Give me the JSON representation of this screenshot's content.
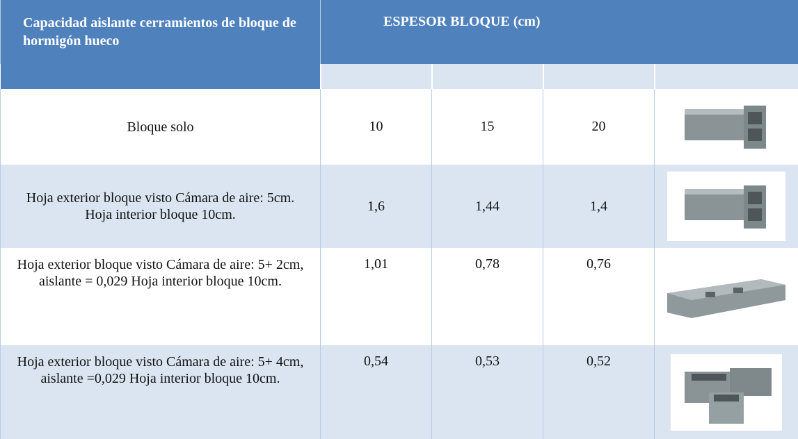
{
  "header": {
    "title": "Capacidad aislante cerramientos de bloque de hormigón hueco",
    "column_group": "ESPESOR BLOQUE (cm)"
  },
  "table": {
    "rows": [
      {
        "label": "Bloque solo",
        "values": [
          "10",
          "15",
          "20"
        ]
      },
      {
        "label": "Hoja exterior bloque visto Cámara de aire: 5cm.    Hoja interior bloque 10cm.",
        "values": [
          "1,6",
          "1,44",
          "1,4"
        ]
      },
      {
        "label": "Hoja exterior bloque visto Cámara de aire: 5+ 2cm, aislante = 0,029 Hoja interior bloque 10cm.",
        "values": [
          "1,01",
          "0,78",
          "0,76"
        ]
      },
      {
        "label": "Hoja exterior bloque visto Cámara de aire: 5+ 4cm, aislante =0,029 Hoja interior bloque 10cm.",
        "values": [
          "0,54",
          "0,53",
          "0,52"
        ]
      }
    ]
  }
}
